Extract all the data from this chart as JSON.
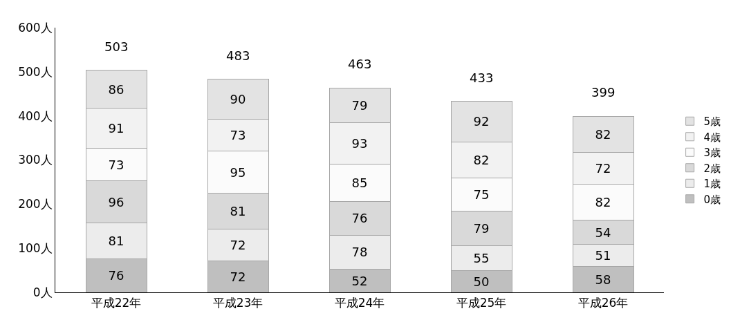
{
  "chart_data": {
    "type": "bar",
    "stacked": true,
    "categories": [
      "平成22年",
      "平成23年",
      "平成24年",
      "平成25年",
      "平成26年"
    ],
    "series": [
      {
        "name": "0歳",
        "color": "#bfbfbf",
        "values": [
          76,
          72,
          52,
          50,
          58
        ]
      },
      {
        "name": "1歳",
        "color": "#ececec",
        "values": [
          81,
          72,
          78,
          55,
          51
        ]
      },
      {
        "name": "2歳",
        "color": "#d9d9d9",
        "values": [
          96,
          81,
          76,
          79,
          54
        ]
      },
      {
        "name": "3歳",
        "color": "#fbfbfb",
        "values": [
          73,
          95,
          85,
          75,
          82
        ]
      },
      {
        "name": "4歳",
        "color": "#f2f2f2",
        "values": [
          91,
          73,
          93,
          82,
          72
        ]
      },
      {
        "name": "5歳",
        "color": "#e3e3e3",
        "values": [
          86,
          90,
          79,
          92,
          82
        ]
      }
    ],
    "ylim": [
      0,
      600
    ],
    "yticks": [
      {
        "value": 0,
        "label": "0人"
      },
      {
        "value": 100,
        "label": "100人"
      },
      {
        "value": 200,
        "label": "200人"
      },
      {
        "value": 300,
        "label": "300人"
      },
      {
        "value": 400,
        "label": "400人"
      },
      {
        "value": 500,
        "label": "500人"
      },
      {
        "value": 600,
        "label": "600人"
      }
    ],
    "totals": [
      "503",
      "483",
      "463",
      "433",
      "399"
    ],
    "data_labels": true,
    "legend": "right"
  }
}
